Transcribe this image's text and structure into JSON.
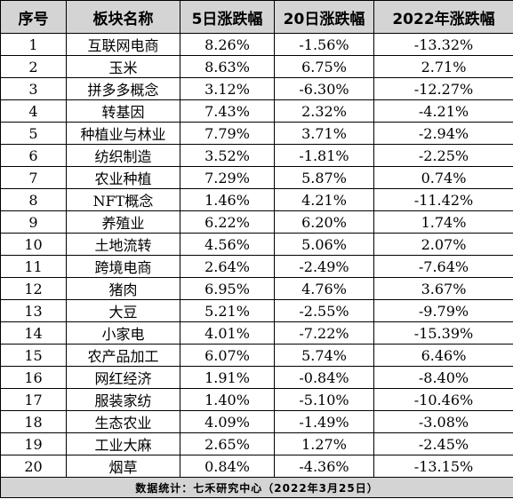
{
  "table": {
    "headers": [
      "序号",
      "板块名称",
      "5日涨跌幅",
      "20日涨跌幅",
      "2022年涨跌幅"
    ],
    "rows": [
      [
        "1",
        "互联网电商",
        "8.26%",
        "-1.56%",
        "-13.32%"
      ],
      [
        "2",
        "玉米",
        "8.63%",
        "6.75%",
        "2.71%"
      ],
      [
        "3",
        "拼多多概念",
        "3.12%",
        "-6.30%",
        "-12.27%"
      ],
      [
        "4",
        "转基因",
        "7.43%",
        "2.32%",
        "-4.21%"
      ],
      [
        "5",
        "种植业与林业",
        "7.79%",
        "3.71%",
        "-2.94%"
      ],
      [
        "6",
        "纺织制造",
        "3.52%",
        "-1.81%",
        "-2.25%"
      ],
      [
        "7",
        "农业种植",
        "7.29%",
        "5.87%",
        "0.74%"
      ],
      [
        "8",
        "NFT概念",
        "1.46%",
        "4.21%",
        "-11.42%"
      ],
      [
        "9",
        "养殖业",
        "6.22%",
        "6.20%",
        "1.74%"
      ],
      [
        "10",
        "土地流转",
        "4.56%",
        "5.06%",
        "2.07%"
      ],
      [
        "11",
        "跨境电商",
        "2.64%",
        "-2.49%",
        "-7.64%"
      ],
      [
        "12",
        "猪肉",
        "6.95%",
        "4.76%",
        "3.67%"
      ],
      [
        "13",
        "大豆",
        "5.21%",
        "-2.55%",
        "-9.79%"
      ],
      [
        "14",
        "小家电",
        "4.01%",
        "-7.22%",
        "-15.39%"
      ],
      [
        "15",
        "农产品加工",
        "6.07%",
        "5.74%",
        "6.46%"
      ],
      [
        "16",
        "网红经济",
        "1.91%",
        "-0.84%",
        "-8.40%"
      ],
      [
        "17",
        "服装家纺",
        "1.40%",
        "-5.10%",
        "-10.46%"
      ],
      [
        "18",
        "生态农业",
        "4.09%",
        "-1.49%",
        "-3.08%"
      ],
      [
        "19",
        "工业大麻",
        "2.65%",
        "1.27%",
        "-2.45%"
      ],
      [
        "20",
        "烟草",
        "0.84%",
        "-4.36%",
        "-13.15%"
      ]
    ],
    "footer": "数据统计：七禾研究中心（2022年3月25日）"
  },
  "colors": {
    "header_bg": "#d4d4d4",
    "footer_bg": "#d4d4d4",
    "border": "#000000",
    "text": "#000000"
  }
}
